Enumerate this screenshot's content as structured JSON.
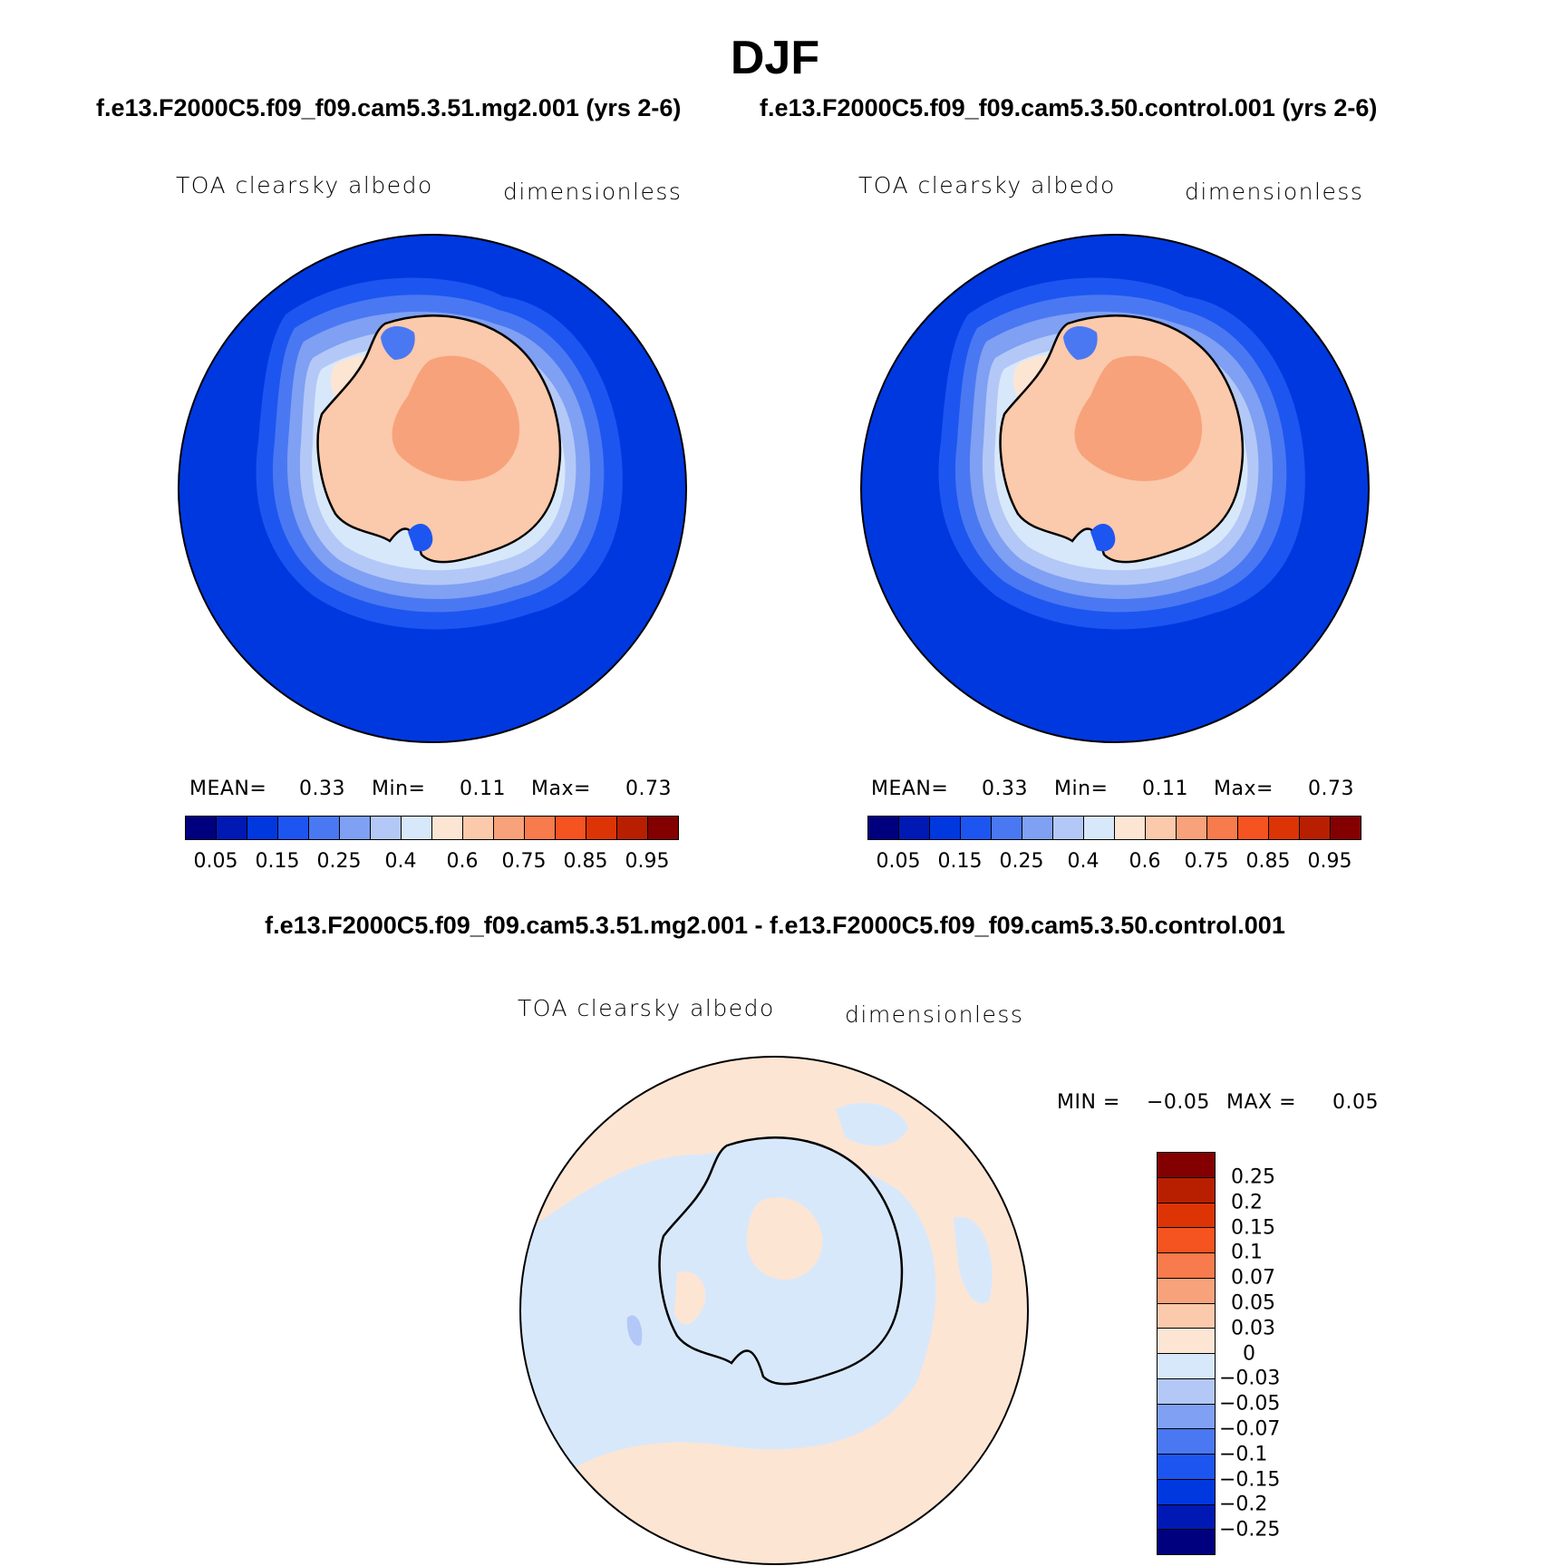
{
  "page": {
    "title": "DJF",
    "case1_title": "f.e13.F2000C5.f09_f09.cam5.3.51.mg2.001 (yrs 2-6)",
    "case2_title": "f.e13.F2000C5.f09_f09.cam5.3.50.control.001 (yrs 2-6)",
    "diff_title": "f.e13.F2000C5.f09_f09.cam5.3.51.mg2.001 - f.e13.F2000C5.f09_f09.cam5.3.50.control.001"
  },
  "colors": {
    "abs_palette": [
      "#00007f",
      "#0019b5",
      "#0038e0",
      "#1d55f0",
      "#4a78f2",
      "#7fa0f3",
      "#b3c8f6",
      "#d8e8fb",
      "#fde5d4",
      "#fbc9ab",
      "#f7a27a",
      "#f77b4c",
      "#f5531f",
      "#dc3405",
      "#b81f00",
      "#840000"
    ],
    "diff_palette": [
      "#00007f",
      "#0019b5",
      "#0038e0",
      "#1d55f0",
      "#4a78f2",
      "#7fa0f3",
      "#b3c8f6",
      "#d8e8fb",
      "#fde5d4",
      "#fbc9ab",
      "#f7a27a",
      "#f77b4c",
      "#f5531f",
      "#dc3405",
      "#b81f00",
      "#840000"
    ],
    "land": "#fbc9ab",
    "land_high": "#f7a27a",
    "ocean": "#0038e0"
  },
  "chart_data": [
    {
      "type": "heatmap",
      "panel": "case1",
      "projection": "south-polar-stereographic",
      "variable_label": "TOA clearsky albedo",
      "units_label": "dimensionless",
      "stats": {
        "mean_label": "MEAN=",
        "mean": "0.33",
        "min_label": "Min=",
        "min": "0.11",
        "max_label": "Max=",
        "max": "0.73"
      },
      "colorbar": {
        "orientation": "horizontal",
        "levels": [
          0.05,
          0.1,
          0.15,
          0.2,
          0.25,
          0.3,
          0.4,
          0.5,
          0.6,
          0.7,
          0.75,
          0.8,
          0.85,
          0.9,
          0.95
        ],
        "tick_labels": [
          "0.05",
          "0.15",
          "0.25",
          "0.4",
          "0.6",
          "0.75",
          "0.85",
          "0.95"
        ]
      }
    },
    {
      "type": "heatmap",
      "panel": "case2",
      "projection": "south-polar-stereographic",
      "variable_label": "TOA clearsky albedo",
      "units_label": "dimensionless",
      "stats": {
        "mean_label": "MEAN=",
        "mean": "0.33",
        "min_label": "Min=",
        "min": "0.11",
        "max_label": "Max=",
        "max": "0.73"
      },
      "colorbar": {
        "orientation": "horizontal",
        "levels": [
          0.05,
          0.1,
          0.15,
          0.2,
          0.25,
          0.3,
          0.4,
          0.5,
          0.6,
          0.7,
          0.75,
          0.8,
          0.85,
          0.9,
          0.95
        ],
        "tick_labels": [
          "0.05",
          "0.15",
          "0.25",
          "0.4",
          "0.6",
          "0.75",
          "0.85",
          "0.95"
        ]
      }
    },
    {
      "type": "heatmap",
      "panel": "difference",
      "projection": "south-polar-stereographic",
      "variable_label": "TOA clearsky albedo",
      "units_label": "dimensionless",
      "stats": {
        "min_label": "MIN =",
        "min": "−0.05",
        "max_label": "MAX =",
        "max": "0.05"
      },
      "colorbar": {
        "orientation": "vertical",
        "tick_labels": [
          "0.25",
          "0.2",
          "0.15",
          "0.1",
          "0.07",
          "0.05",
          "0.03",
          "0",
          "−0.03",
          "−0.05",
          "−0.07",
          "−0.1",
          "−0.15",
          "−0.2",
          "−0.25"
        ]
      }
    }
  ]
}
